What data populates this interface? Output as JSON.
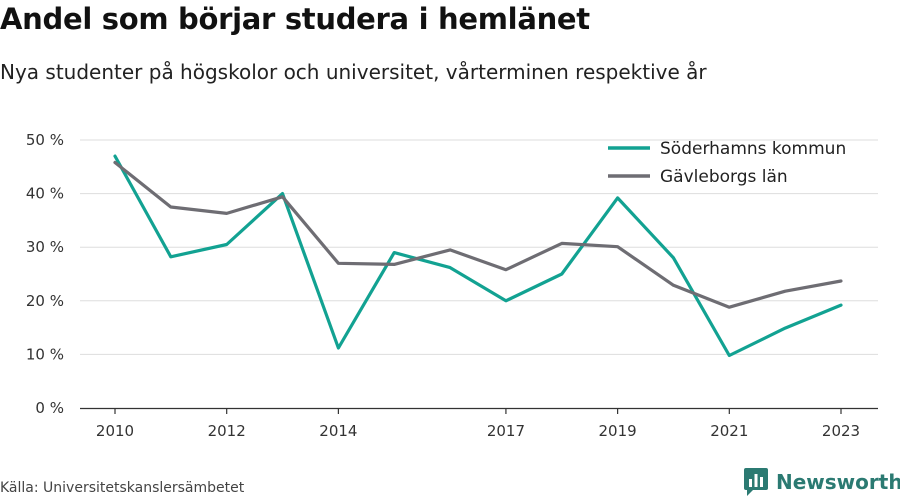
{
  "header": {
    "title": "Andel som börjar studera i hemlänet",
    "subtitle": "Nya studenter på högskolor och universitet, vårterminen respektive år"
  },
  "footer": {
    "source": "Källa: Universitetskanslersämbetet",
    "brand": "Newsworthy",
    "brand_icon": "newsworthy-logo-icon",
    "brand_color": "#2b7a72"
  },
  "chart_data": {
    "type": "line",
    "title": "Andel som börjar studera i hemlänet",
    "subtitle": "Nya studenter på högskolor och universitet, vårterminen respektive år",
    "xlabel": "",
    "ylabel": "",
    "x": [
      2010,
      2011,
      2012,
      2013,
      2014,
      2015,
      2016,
      2017,
      2018,
      2019,
      2020,
      2021,
      2022,
      2023
    ],
    "xticks": [
      2010,
      2012,
      2014,
      2017,
      2019,
      2021,
      2023
    ],
    "xtick_labels": [
      "2010",
      "2012",
      "2014",
      "2017",
      "2019",
      "2021",
      "2023"
    ],
    "xlim": [
      2010,
      2023
    ],
    "ylim": [
      0,
      50
    ],
    "yticks": [
      0,
      10,
      20,
      30,
      40,
      50
    ],
    "ytick_labels": [
      "0 %",
      "10 %",
      "20 %",
      "30 %",
      "40 %",
      "50 %"
    ],
    "grid": true,
    "legend_position": "top-right",
    "series": [
      {
        "name": "Söderhamns kommun",
        "color": "#12a292",
        "values": [
          47.0,
          28.2,
          30.5,
          40.0,
          11.2,
          29.0,
          26.2,
          20.0,
          25.0,
          39.2,
          28.0,
          9.8,
          14.9,
          19.2
        ]
      },
      {
        "name": "Gävleborgs län",
        "color": "#6e6d73",
        "values": [
          45.8,
          37.5,
          36.3,
          39.4,
          27.0,
          26.8,
          29.5,
          25.8,
          30.7,
          30.1,
          22.9,
          18.8,
          21.8,
          23.7
        ]
      }
    ]
  }
}
